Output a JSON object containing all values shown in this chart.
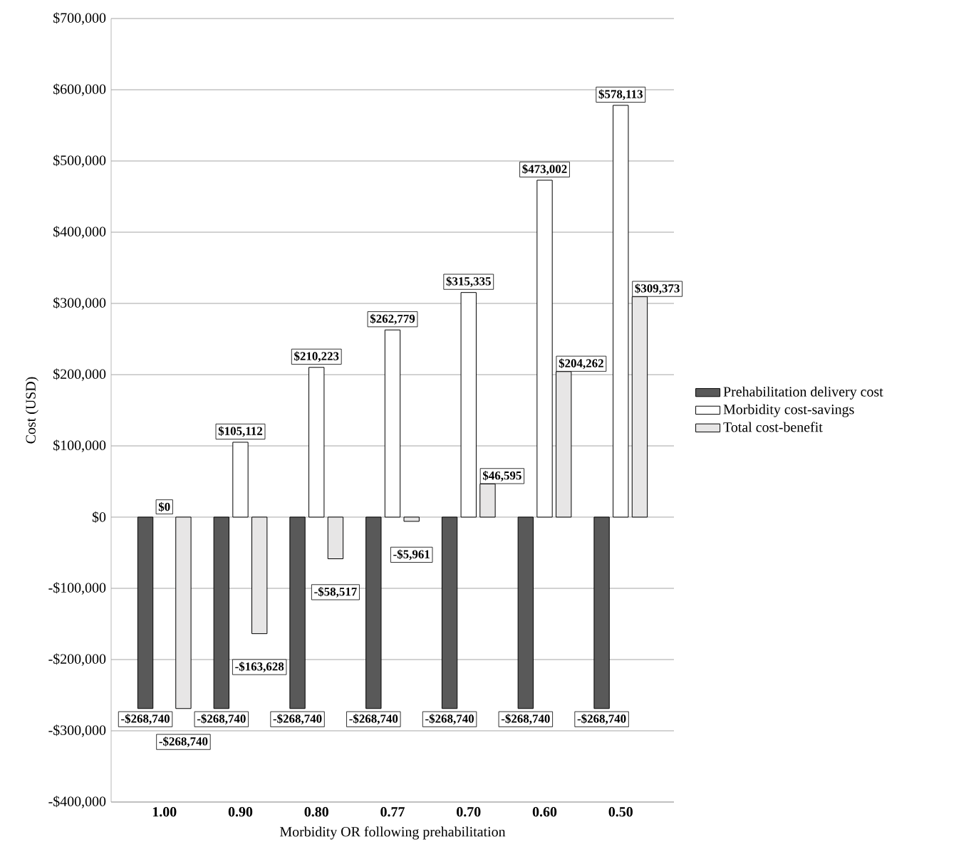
{
  "chart_data": {
    "type": "bar",
    "xlabel": "Morbidity OR following prehabilitation",
    "ylabel": "Cost (USD)",
    "categories": [
      "1.00",
      "0.90",
      "0.80",
      "0.77",
      "0.70",
      "0.60",
      "0.50"
    ],
    "series": [
      {
        "name": "Prehabilitation delivery cost",
        "color": "#595959",
        "values": [
          -268740,
          -268740,
          -268740,
          -268740,
          -268740,
          -268740,
          -268740
        ],
        "value_labels": [
          "-$268,740",
          "-$268,740",
          "-$268,740",
          "-$268,740",
          "-$268,740",
          "-$268,740",
          "-$268,740"
        ]
      },
      {
        "name": "Morbidity cost-savings",
        "color": "#ffffff",
        "values": [
          0,
          105112,
          210223,
          262779,
          315335,
          473002,
          578113
        ],
        "value_labels": [
          "$0",
          "$105,112",
          "$210,223",
          "$262,779",
          "$315,335",
          "$473,002",
          "$578,113"
        ]
      },
      {
        "name": "Total cost-benefit",
        "color": "#e7e6e6",
        "values": [
          -268740,
          -163628,
          -58517,
          -5961,
          46595,
          204262,
          309373
        ],
        "value_labels": [
          "-$268,740",
          "-$163,628",
          "-$58,517",
          "-$5,961",
          "$46,595",
          "$204,262",
          "$309,373"
        ]
      }
    ],
    "ylim": [
      -400000,
      700000
    ],
    "yticks": [
      {
        "value": -400000,
        "label": "-$400,000"
      },
      {
        "value": -300000,
        "label": "-$300,000"
      },
      {
        "value": -200000,
        "label": "-$200,000"
      },
      {
        "value": -100000,
        "label": "-$100,000"
      },
      {
        "value": 0,
        "label": "$0"
      },
      {
        "value": 100000,
        "label": "$100,000"
      },
      {
        "value": 200000,
        "label": "$200,000"
      },
      {
        "value": 300000,
        "label": "$300,000"
      },
      {
        "value": 400000,
        "label": "$400,000"
      },
      {
        "value": 500000,
        "label": "$500,000"
      },
      {
        "value": 600000,
        "label": "$600,000"
      },
      {
        "value": 700000,
        "label": "$700,000"
      }
    ],
    "grid": "y",
    "legend": "right"
  }
}
